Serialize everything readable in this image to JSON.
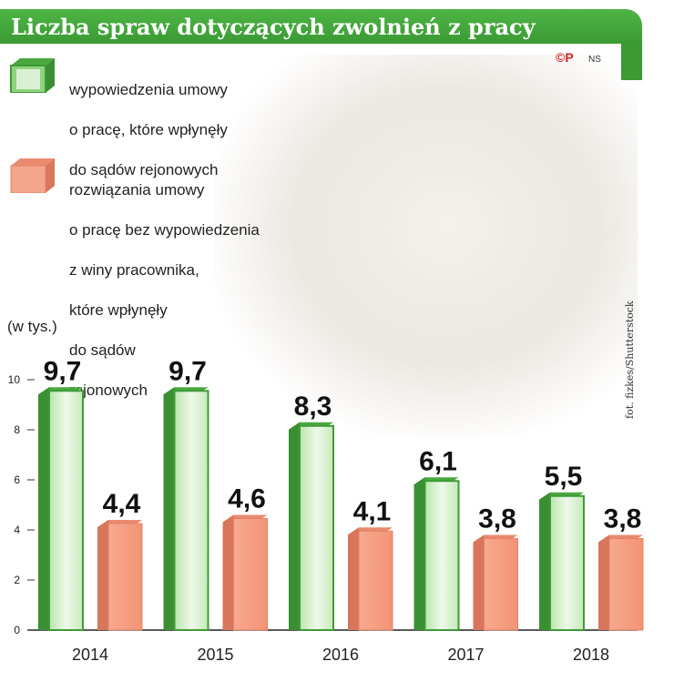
{
  "title": "Liczba spraw dotyczących zwolnień z pracy",
  "copyright": "©P",
  "copyright_author": "NS",
  "photo_credit": "fot. fizkes/Shutterstock",
  "legend": [
    {
      "lines": [
        "wypowiedzenia umowy",
        "o pracę, które wpłynęły",
        "do sądów rejonowych"
      ],
      "color": "#5bbd4e"
    },
    {
      "lines": [
        "rozwiązania umowy",
        "o pracę bez wypowiedzenia",
        "z winy pracownika,",
        "które wpłynęły",
        "do sądów",
        "rejonowych"
      ],
      "color": "#f08e72"
    }
  ],
  "unit": "(w tys.)",
  "colors": {
    "green": "#5bbd4e",
    "salmon": "#f08e72",
    "title_bg": "#3fa33a"
  },
  "chart_data": {
    "type": "bar",
    "categories": [
      "2014",
      "2015",
      "2016",
      "2017",
      "2018"
    ],
    "series": [
      {
        "name": "wypowiedzenia umowy o pracę, które wpłynęły do sądów rejonowych",
        "values": [
          9.7,
          9.7,
          8.3,
          6.1,
          5.5
        ],
        "labels": [
          "9,7",
          "9,7",
          "8,3",
          "6,1",
          "5,5"
        ]
      },
      {
        "name": "rozwiązania umowy o pracę bez wypowiedzenia z winy pracownika, które wpłynęły do sądów rejonowych",
        "values": [
          4.4,
          4.6,
          4.1,
          3.8,
          3.8
        ],
        "labels": [
          "4,4",
          "4,6",
          "4,1",
          "3,8",
          "3,8"
        ]
      }
    ],
    "yticks": [
      "0",
      "2",
      "4",
      "6",
      "8",
      "10"
    ],
    "ylim": [
      0,
      10
    ],
    "ylabel": "(w tys.)"
  }
}
